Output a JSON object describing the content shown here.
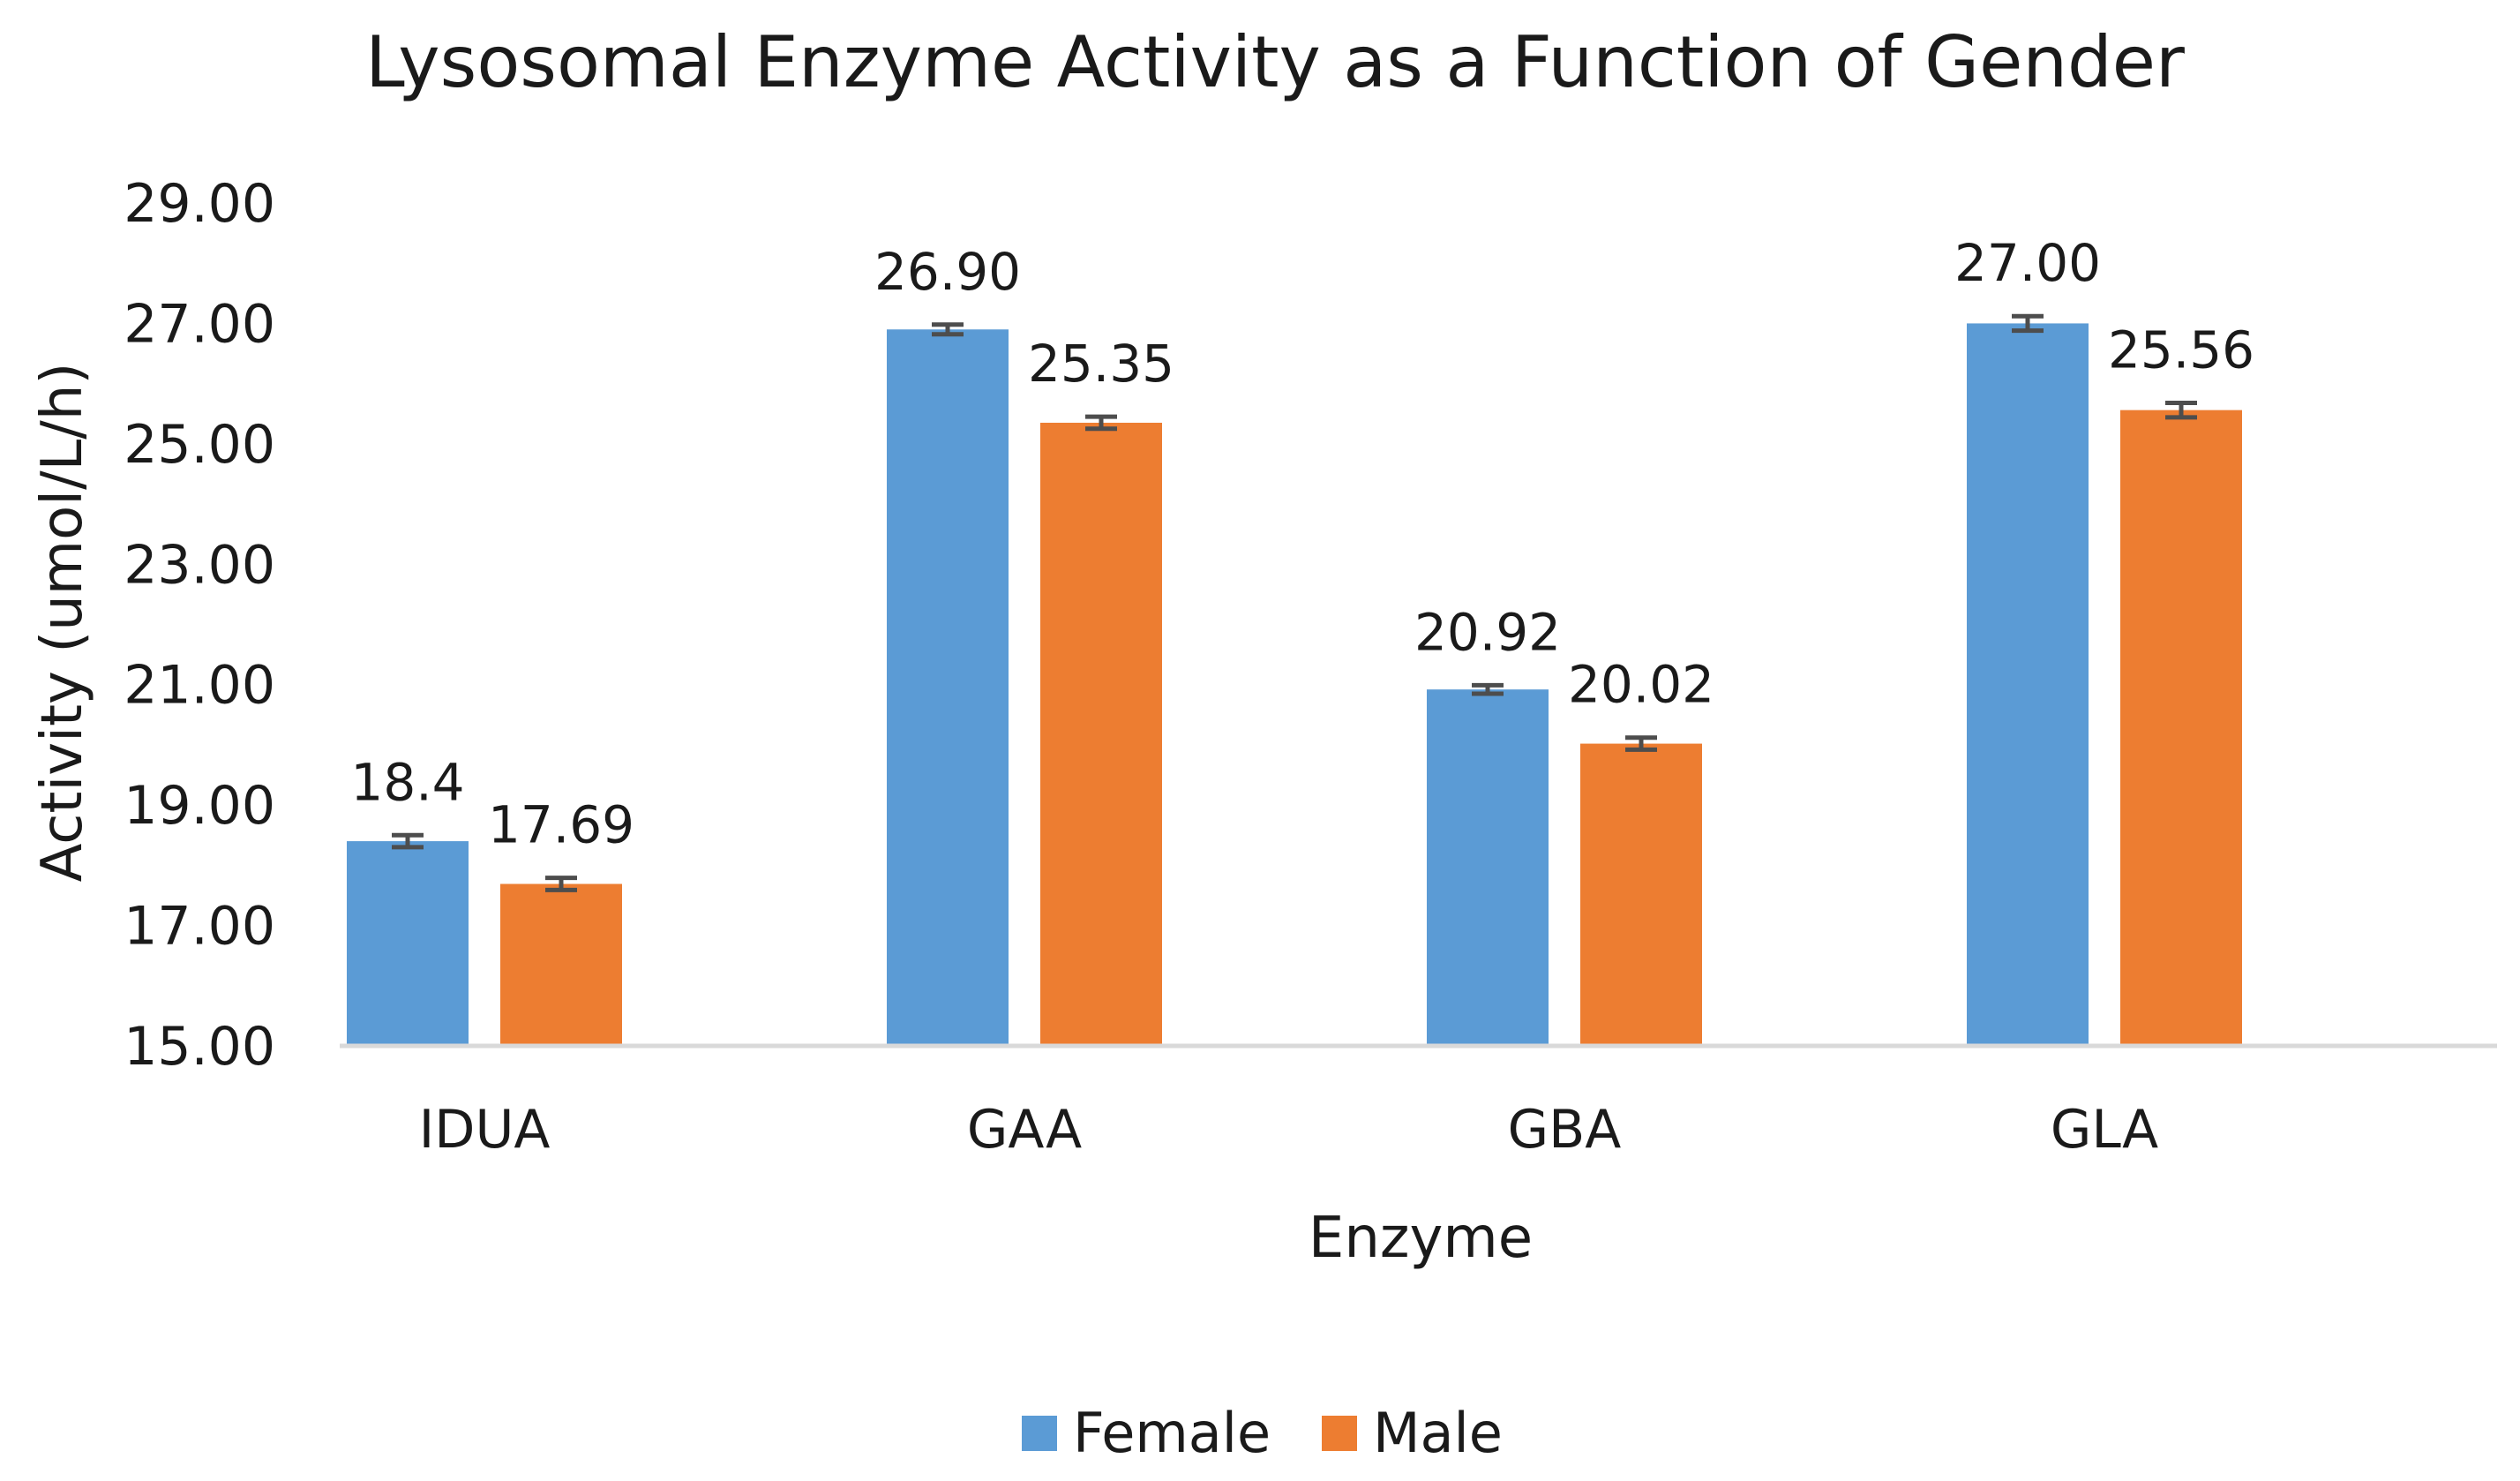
{
  "chart_data": {
    "type": "bar",
    "title": "Lysosomal Enzyme Activity as a Function of Gender",
    "xlabel": "Enzyme",
    "ylabel": "Activity (umol/L/h)",
    "ylim": [
      15,
      29
    ],
    "yticks": [
      "15.00",
      "17.00",
      "19.00",
      "21.00",
      "23.00",
      "25.00",
      "27.00",
      "29.00"
    ],
    "categories": [
      "IDUA",
      "GAA",
      "GBA",
      "GLA"
    ],
    "series": [
      {
        "name": "Female",
        "color": "#5b9bd5",
        "values": [
          18.4,
          26.9,
          20.92,
          27.0
        ],
        "labels": [
          "18.4",
          "26.90",
          "20.92",
          "27.00"
        ],
        "errors": [
          0.1,
          0.08,
          0.07,
          0.12
        ]
      },
      {
        "name": "Male",
        "color": "#ed7d31",
        "values": [
          17.69,
          25.35,
          20.02,
          25.56
        ],
        "labels": [
          "17.69",
          "25.35",
          "20.02",
          "25.56"
        ],
        "errors": [
          0.1,
          0.1,
          0.1,
          0.12
        ]
      }
    ],
    "grid": false,
    "legend": "bottom-center"
  }
}
